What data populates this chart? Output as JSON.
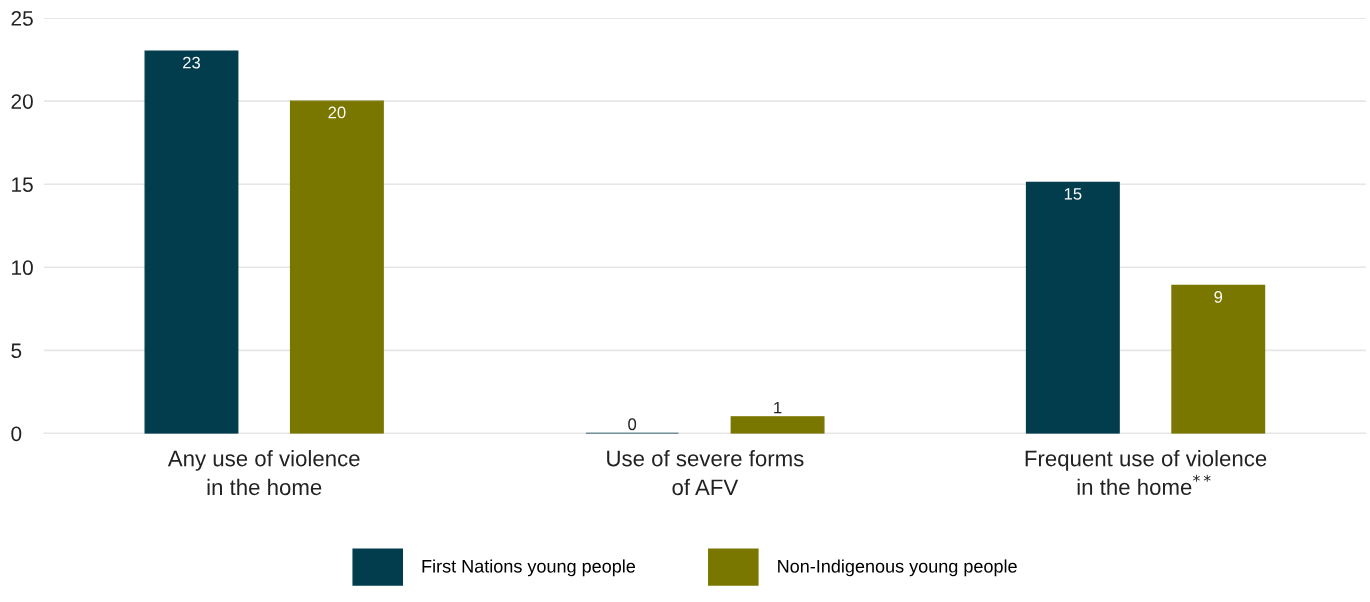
{
  "chart_data": {
    "type": "bar",
    "categories": [
      "Any use of violence\nin the home",
      "Use of severe forms\nof AFV",
      "Frequent use of violence\nin the home$^{**}$"
    ],
    "series": [
      {
        "name": "First Nations young people",
        "color": "#023d4d",
        "values": [
          23,
          0,
          15.1
        ],
        "value_labels": [
          "23",
          "0",
          "15"
        ]
      },
      {
        "name": "Non-Indigenous young people",
        "color": "#7a7700",
        "values": [
          20,
          1,
          8.9
        ],
        "value_labels": [
          "20",
          "1",
          "9"
        ]
      }
    ],
    "ylim": [
      0,
      25
    ],
    "yticks": [
      0,
      5,
      10,
      15,
      20,
      25
    ],
    "grid": "y",
    "legend": "bottom"
  }
}
